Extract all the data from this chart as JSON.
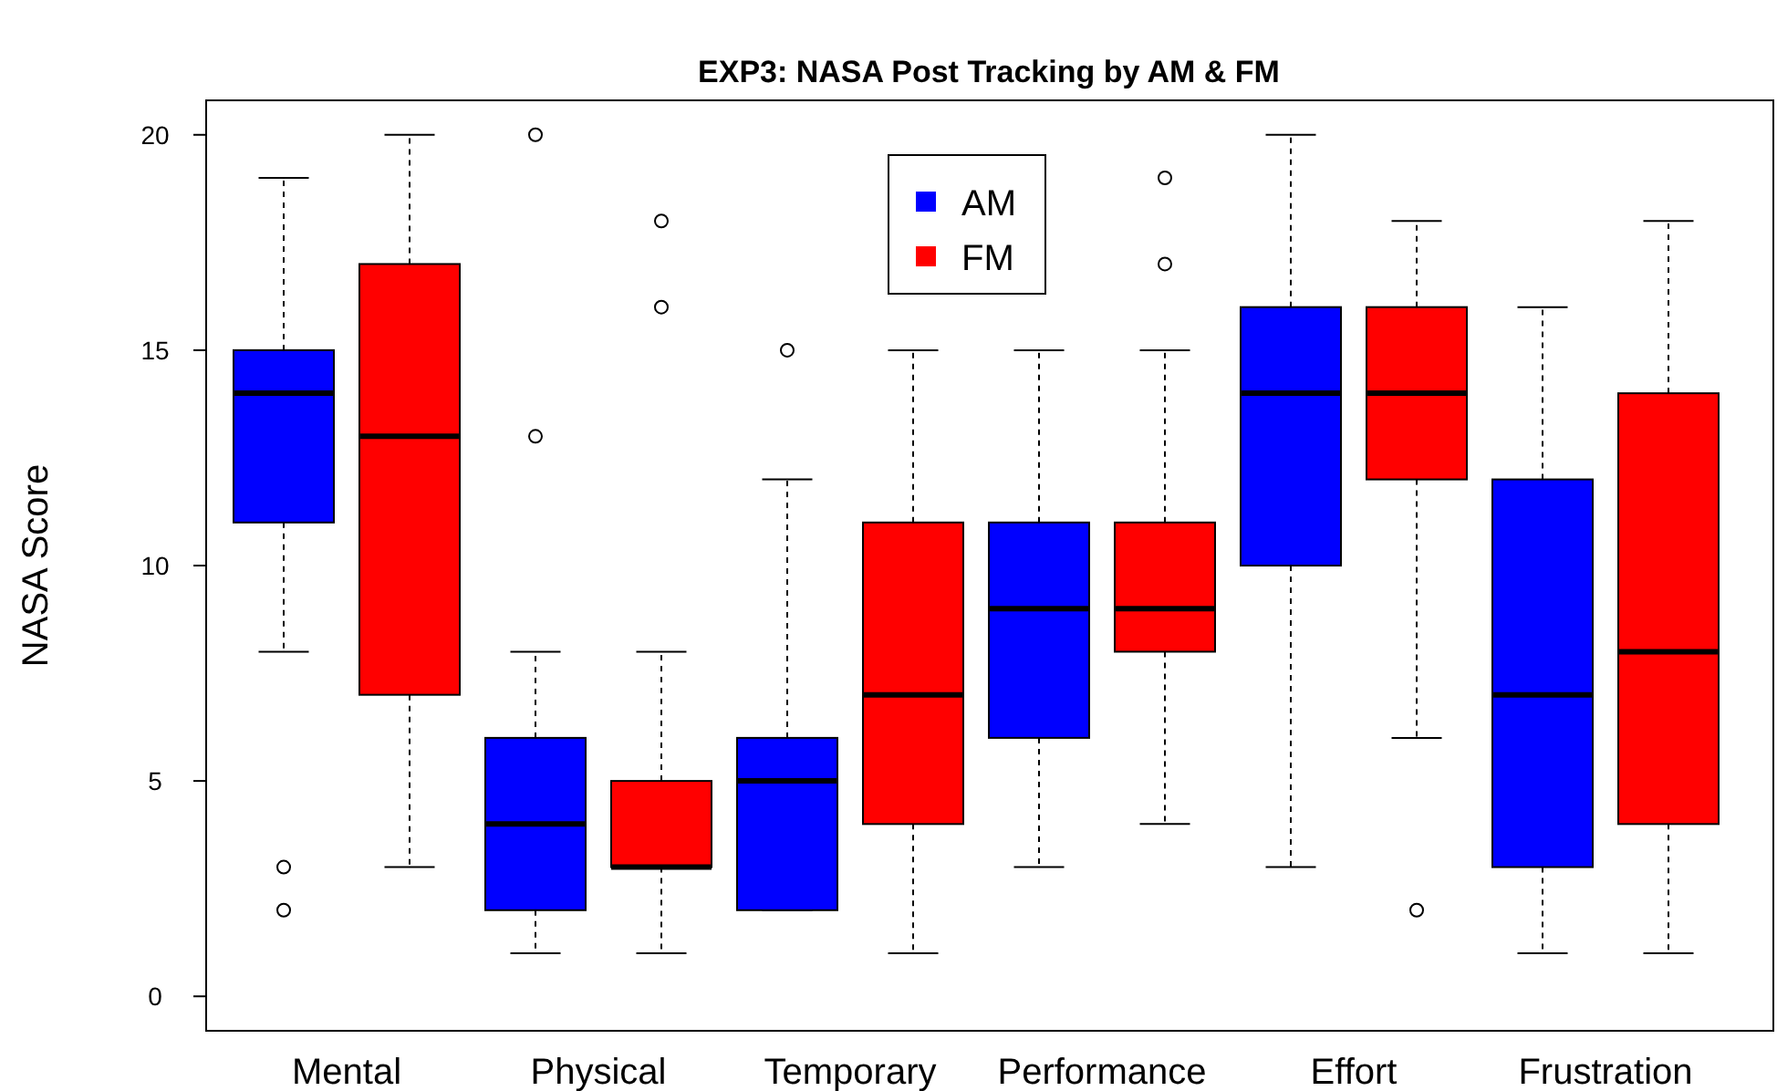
{
  "chart_data": {
    "type": "box",
    "title": "EXP3: NASA Post Tracking by AM & FM",
    "ylabel": "NASA Score",
    "categories": [
      "Mental",
      "Physical",
      "Temporary",
      "Performance",
      "Effort",
      "Frustration"
    ],
    "ylim": [
      -0.8,
      20.8
    ],
    "yticks": [
      0,
      5,
      10,
      15,
      20
    ],
    "legend": "top",
    "grid": false,
    "series": [
      {
        "name": "AM",
        "color": "#0000ff",
        "boxes": [
          {
            "low": 8,
            "q1": 11,
            "median": 14,
            "q3": 15,
            "high": 19,
            "outliers": [
              2,
              3
            ]
          },
          {
            "low": 1,
            "q1": 2,
            "median": 4,
            "q3": 6,
            "high": 8,
            "outliers": [
              13,
              20
            ]
          },
          {
            "low": 2,
            "q1": 2,
            "median": 5,
            "q3": 6,
            "high": 12,
            "outliers": [
              15
            ]
          },
          {
            "low": 3,
            "q1": 6,
            "median": 9,
            "q3": 11,
            "high": 15
          },
          {
            "low": 3,
            "q1": 10,
            "median": 14,
            "q3": 16,
            "high": 20
          },
          {
            "low": 1,
            "q1": 3,
            "median": 7,
            "q3": 12,
            "high": 16
          }
        ]
      },
      {
        "name": "FM",
        "color": "#ff0000",
        "boxes": [
          {
            "low": 3,
            "q1": 7,
            "median": 13,
            "q3": 17,
            "high": 20
          },
          {
            "low": 1,
            "q1": 3,
            "median": 3,
            "q3": 5,
            "high": 8,
            "outliers": [
              16,
              18
            ]
          },
          {
            "low": 1,
            "q1": 4,
            "median": 7,
            "q3": 11,
            "high": 15
          },
          {
            "low": 4,
            "q1": 8,
            "median": 9,
            "q3": 11,
            "high": 15,
            "outliers": [
              17,
              19
            ]
          },
          {
            "low": 6,
            "q1": 12,
            "median": 14,
            "q3": 16,
            "high": 18,
            "outliers": [
              2
            ]
          },
          {
            "low": 1,
            "q1": 4,
            "median": 8,
            "q3": 14,
            "high": 18
          }
        ]
      }
    ]
  }
}
